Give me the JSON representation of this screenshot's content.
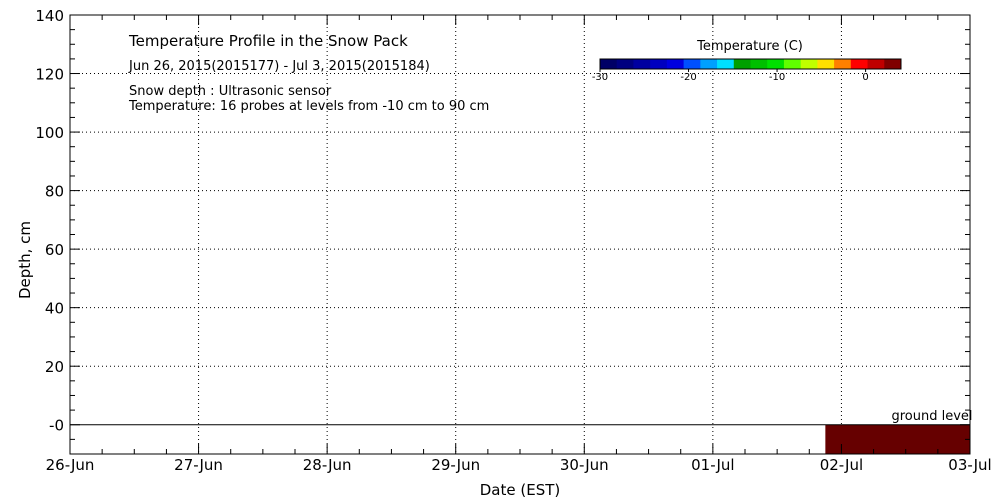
{
  "chart_data": {
    "type": "area",
    "title": "Temperature Profile in the Snow Pack",
    "subtitle": "Jun 26, 2015(2015177) - Jul  3, 2015(2015184)",
    "notes": [
      "Snow depth : Ultrasonic sensor",
      "Temperature: 16 probes at levels from -10 cm to 90 cm"
    ],
    "xlabel": "Date (EST)",
    "ylabel": "Depth, cm",
    "x_ticks": [
      "26-Jun",
      "27-Jun",
      "28-Jun",
      "29-Jun",
      "30-Jun",
      "01-Jul",
      "02-Jul",
      "03-Jul"
    ],
    "y_ticks": [
      "-0",
      "20",
      "40",
      "60",
      "80",
      "100",
      "120",
      "140"
    ],
    "xlim": [
      "2015-06-26",
      "2015-07-03"
    ],
    "ylim": [
      -10,
      140
    ],
    "grid": "dotted",
    "ground_level": 0,
    "ground_level_label": "ground level",
    "temperature_block": {
      "x_start": "2015-07-01 21:00",
      "x_end": "2015-07-03 00:00",
      "y_start": -10,
      "y_end": 0,
      "color": "#660000"
    },
    "colorbar": {
      "title": "Temperature (C)",
      "range": [
        -30,
        4
      ],
      "tick_labels": [
        "-30",
        "-20",
        "-10",
        "0"
      ],
      "tick_values": [
        -30,
        -20,
        -10,
        0
      ],
      "colors": [
        "#000066",
        "#000080",
        "#0000a0",
        "#0000c0",
        "#0000e0",
        "#0050ff",
        "#00a0ff",
        "#00e0ff",
        "#00a000",
        "#00c000",
        "#00e000",
        "#60ff00",
        "#c0ff00",
        "#ffe000",
        "#ff8000",
        "#ff0000",
        "#c00000",
        "#800000"
      ]
    }
  }
}
